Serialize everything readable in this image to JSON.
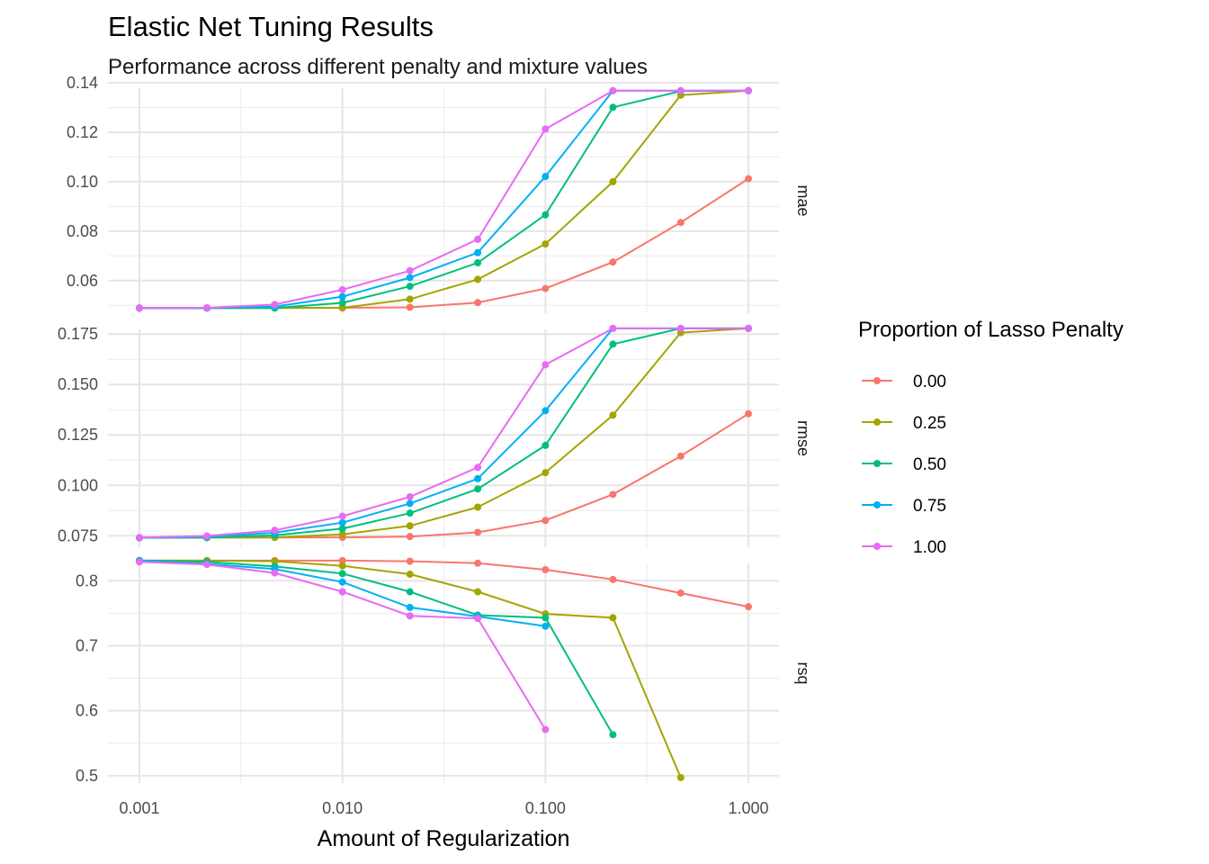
{
  "chart_data": {
    "type": "line",
    "title": "Elastic Net Tuning Results",
    "subtitle": "Performance across different penalty and mixture values",
    "xlabel": "Amount of Regularization",
    "x_scale": "log10",
    "xlim": [
      0.001,
      1.0
    ],
    "x_tick_labels": [
      "0.001",
      "0.010",
      "0.100",
      "1.000"
    ],
    "x": [
      0.001,
      0.00215,
      0.00464,
      0.01,
      0.0215,
      0.0464,
      0.1,
      0.215,
      0.464,
      1.0
    ],
    "grid": true,
    "legend": {
      "title": "Proportion of Lasso Penalty",
      "position": "right",
      "entries": [
        "0.00",
        "0.25",
        "0.50",
        "0.75",
        "1.00"
      ]
    },
    "colors": [
      "#F8766D",
      "#A3A500",
      "#00BF7D",
      "#00B0F6",
      "#E76BF3"
    ],
    "panels": [
      {
        "name": "mae",
        "ylim": [
          0.049,
          0.14
        ],
        "y_ticks": [
          0.06,
          0.08,
          0.1,
          0.12,
          0.14
        ],
        "y_tick_labels": [
          "0.06",
          "0.08",
          "0.10",
          "0.12",
          "0.14"
        ],
        "series": [
          {
            "name": "0.00",
            "values": [
              0.0489,
              0.0489,
              0.049,
              0.049,
              0.0492,
              0.0511,
              0.0568,
              0.0675,
              0.0835,
              0.1012
            ]
          },
          {
            "name": "0.25",
            "values": [
              0.0489,
              0.0489,
              0.0489,
              0.049,
              0.0525,
              0.0605,
              0.0748,
              0.1,
              0.135,
              0.1368
            ]
          },
          {
            "name": "0.50",
            "values": [
              0.0489,
              0.0489,
              0.0489,
              0.051,
              0.0577,
              0.0672,
              0.0866,
              0.1301,
              0.1366,
              0.1368
            ]
          },
          {
            "name": "0.75",
            "values": [
              0.0489,
              0.0489,
              0.0495,
              0.0535,
              0.0612,
              0.0713,
              0.1021,
              0.1368,
              0.1368,
              0.1368
            ]
          },
          {
            "name": "1.00",
            "values": [
              0.0489,
              0.049,
              0.0503,
              0.0563,
              0.064,
              0.0767,
              0.1213,
              0.1368,
              0.1368,
              0.1368
            ]
          }
        ]
      },
      {
        "name": "rmse",
        "ylim": [
          0.072,
          0.18
        ],
        "y_ticks": [
          0.075,
          0.1,
          0.125,
          0.15,
          0.175
        ],
        "y_tick_labels": [
          "0.075",
          "0.100",
          "0.125",
          "0.150",
          "0.175"
        ],
        "series": [
          {
            "name": "0.00",
            "values": [
              0.074,
              0.0741,
              0.0741,
              0.0742,
              0.0746,
              0.0767,
              0.0826,
              0.0955,
              0.1145,
              0.1355
            ]
          },
          {
            "name": "0.25",
            "values": [
              0.074,
              0.0741,
              0.0742,
              0.0757,
              0.0799,
              0.0892,
              0.1063,
              0.1348,
              0.1757,
              0.1778
            ]
          },
          {
            "name": "0.50",
            "values": [
              0.074,
              0.0741,
              0.0752,
              0.0785,
              0.0862,
              0.0982,
              0.1198,
              0.17,
              0.1778,
              0.1778
            ]
          },
          {
            "name": "0.75",
            "values": [
              0.074,
              0.0745,
              0.0765,
              0.0815,
              0.091,
              0.1033,
              0.137,
              0.1778,
              0.1778,
              0.1778
            ]
          },
          {
            "name": "1.00",
            "values": [
              0.0741,
              0.0749,
              0.0777,
              0.0847,
              0.0943,
              0.1089,
              0.1598,
              0.1778,
              0.1778,
              0.1778
            ]
          }
        ]
      },
      {
        "name": "rsq",
        "ylim": [
          0.497,
          0.835
        ],
        "y_ticks": [
          0.5,
          0.6,
          0.7,
          0.8
        ],
        "y_tick_labels": [
          "0.5",
          "0.6",
          "0.7",
          "0.8"
        ],
        "series": [
          {
            "name": "0.00",
            "values": [
              0.831,
              0.831,
              0.831,
              0.831,
              0.83,
              0.827,
              0.817,
              0.802,
              0.781,
              0.76
            ]
          },
          {
            "name": "0.25",
            "values": [
              0.831,
              0.831,
              0.83,
              0.823,
              0.81,
              0.783,
              0.749,
              0.743,
              0.497,
              null
            ]
          },
          {
            "name": "0.50",
            "values": [
              0.831,
              0.829,
              0.822,
              0.811,
              0.783,
              0.747,
              0.743,
              0.563,
              null,
              null
            ]
          },
          {
            "name": "0.75",
            "values": [
              0.831,
              0.826,
              0.818,
              0.798,
              0.759,
              0.745,
              0.73,
              null,
              null,
              null
            ]
          },
          {
            "name": "1.00",
            "values": [
              0.829,
              0.825,
              0.812,
              0.783,
              0.746,
              0.742,
              0.571,
              null,
              null,
              null
            ]
          }
        ]
      }
    ]
  }
}
